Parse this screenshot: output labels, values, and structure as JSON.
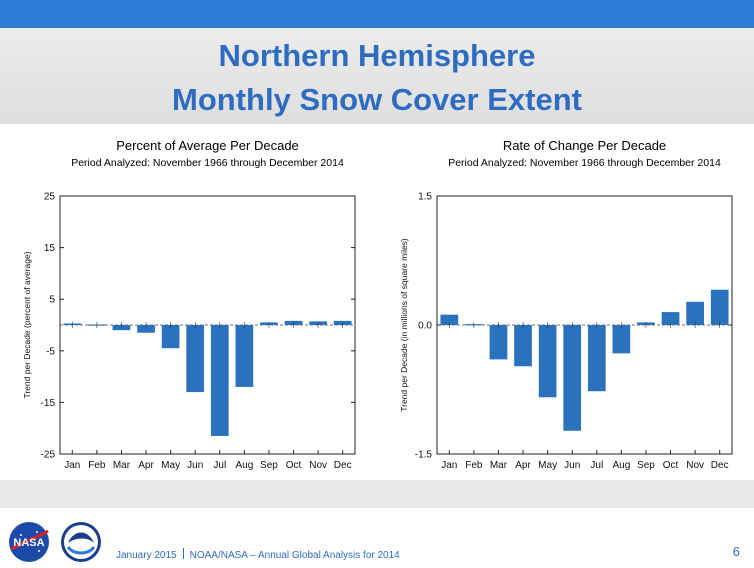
{
  "header": {
    "title_line1": "Northern Hemisphere",
    "title_line2": "Monthly Snow Cover Extent"
  },
  "chart_data": [
    {
      "type": "bar",
      "title": "Percent of Average Per Decade",
      "subtitle": "Period Analyzed: November 1966 through December 2014",
      "ylabel": "Trend per Decade (percent of average)",
      "categories": [
        "Jan",
        "Feb",
        "Mar",
        "Apr",
        "May",
        "Jun",
        "Jul",
        "Aug",
        "Sep",
        "Oct",
        "Nov",
        "Dec"
      ],
      "values": [
        0.3,
        0.1,
        -1,
        -1.5,
        -4.5,
        -13,
        -21.5,
        -12,
        0.5,
        0.8,
        0.7,
        0.8
      ],
      "ylim": [
        -25,
        25
      ],
      "yticks": [
        25,
        15,
        5,
        -5,
        -15,
        -25
      ],
      "ytick_labels": [
        "25",
        "15",
        "5",
        "-5",
        "-15",
        "-25"
      ],
      "grid": false
    },
    {
      "type": "bar",
      "title": "Rate of Change Per Decade",
      "subtitle": "Period Analyzed: November 1966 through December 2014",
      "ylabel": "Trend per Decade (in millions of square miles)",
      "categories": [
        "Jan",
        "Feb",
        "Mar",
        "Apr",
        "May",
        "Jun",
        "Jul",
        "Aug",
        "Sep",
        "Oct",
        "Nov",
        "Dec"
      ],
      "values": [
        0.12,
        0.01,
        -0.4,
        -0.48,
        -0.84,
        -1.23,
        -0.77,
        -0.33,
        0.03,
        0.15,
        0.27,
        0.41
      ],
      "ylim": [
        -1.5,
        1.5
      ],
      "yticks": [
        1.5,
        0,
        -1.5
      ],
      "ytick_labels": [
        "1.5",
        "0.0",
        "-1.5"
      ],
      "grid": false
    }
  ],
  "colors": {
    "bar": "#2a72bd",
    "title": "#2d6cc0",
    "top_bar": "#2e7bd6"
  },
  "logos": {
    "left": "NASA",
    "right": "NOAA"
  },
  "footer": {
    "left": "January 2015",
    "right": "NOAA/NASA – Annual Global Analysis for 2014",
    "page": "6"
  }
}
